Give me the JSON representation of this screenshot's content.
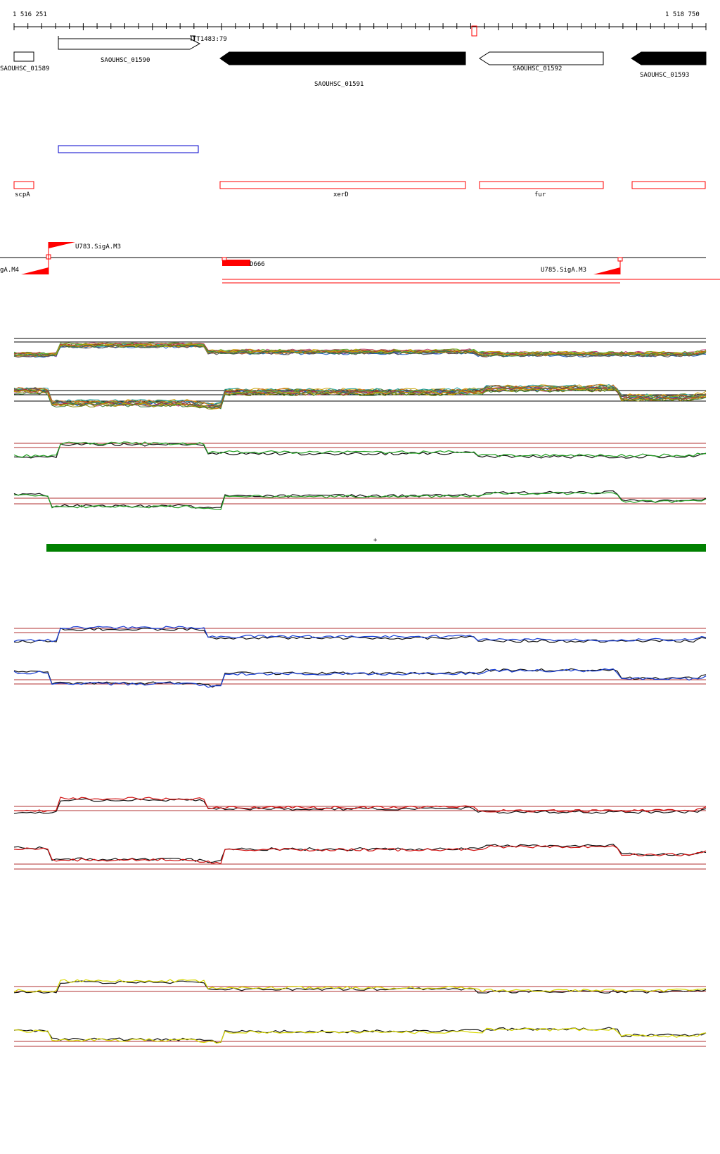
{
  "ruler": {
    "start_label": "1 516 251",
    "end_label": "1 518 750"
  },
  "genes": [
    {
      "id": "g1589",
      "label": "SAOUHSC_01589",
      "strand": "none",
      "fill": "white"
    },
    {
      "id": "g1590",
      "label": "SAOUHSC_01590",
      "strand": "forward",
      "fill": "white"
    },
    {
      "id": "g1591",
      "label": "SAOUHSC_01591",
      "strand": "reverse",
      "fill": "black"
    },
    {
      "id": "g1592",
      "label": "SAOUHSC_01592",
      "strand": "reverse",
      "fill": "white"
    },
    {
      "id": "g1593",
      "label": "SAOUHSC_01593",
      "strand": "reverse",
      "fill": "black"
    }
  ],
  "terminator": {
    "label": "TT1483:79"
  },
  "gene_names": [
    {
      "id": "scpA",
      "label": "scpA"
    },
    {
      "id": "xerD",
      "label": "xerD"
    },
    {
      "id": "fur",
      "label": "fur"
    }
  ],
  "promoters": [
    {
      "id": "m4",
      "label": "gA.M4"
    },
    {
      "id": "u783",
      "label": "U783.SigA.M3"
    },
    {
      "id": "d666",
      "label": "D666"
    },
    {
      "id": "u785",
      "label": "U785.SigA.M3"
    }
  ],
  "tracks": {
    "cursor_mark": "+"
  },
  "colors": {
    "gene_outline": "#000000",
    "gene_filled": "#000000",
    "feature_red": "#ff0000",
    "feature_blue": "#0000cc",
    "track_green_bar": "#008000",
    "baseline_red": "#b03030",
    "series_green": "#22a022",
    "series_blue": "#1a3fd6",
    "series_red": "#d01010",
    "series_yellow": "#d8d800",
    "series_black": "#111111"
  }
}
